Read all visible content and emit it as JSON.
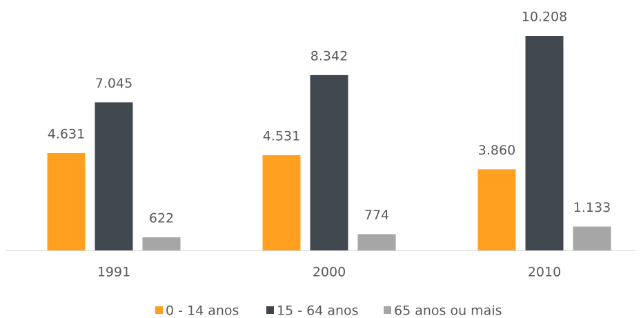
{
  "chart_data": {
    "type": "bar",
    "categories": [
      "1991",
      "2000",
      "2010"
    ],
    "series": [
      {
        "name": "0 - 14 anos",
        "color": "#ffa020",
        "values": [
          4631,
          4531,
          3860
        ],
        "value_labels": [
          "4.631",
          "4.531",
          "3.860"
        ]
      },
      {
        "name": "15 - 64 anos",
        "color": "#40474f",
        "values": [
          7045,
          8342,
          10208
        ],
        "value_labels": [
          "7.045",
          "8.342",
          "10.208"
        ]
      },
      {
        "name": "65 anos ou mais",
        "color": "#a6a6a6",
        "values": [
          622,
          774,
          1133
        ],
        "value_labels": [
          "622",
          "774",
          "1.133"
        ]
      }
    ],
    "legend": "bottom"
  }
}
